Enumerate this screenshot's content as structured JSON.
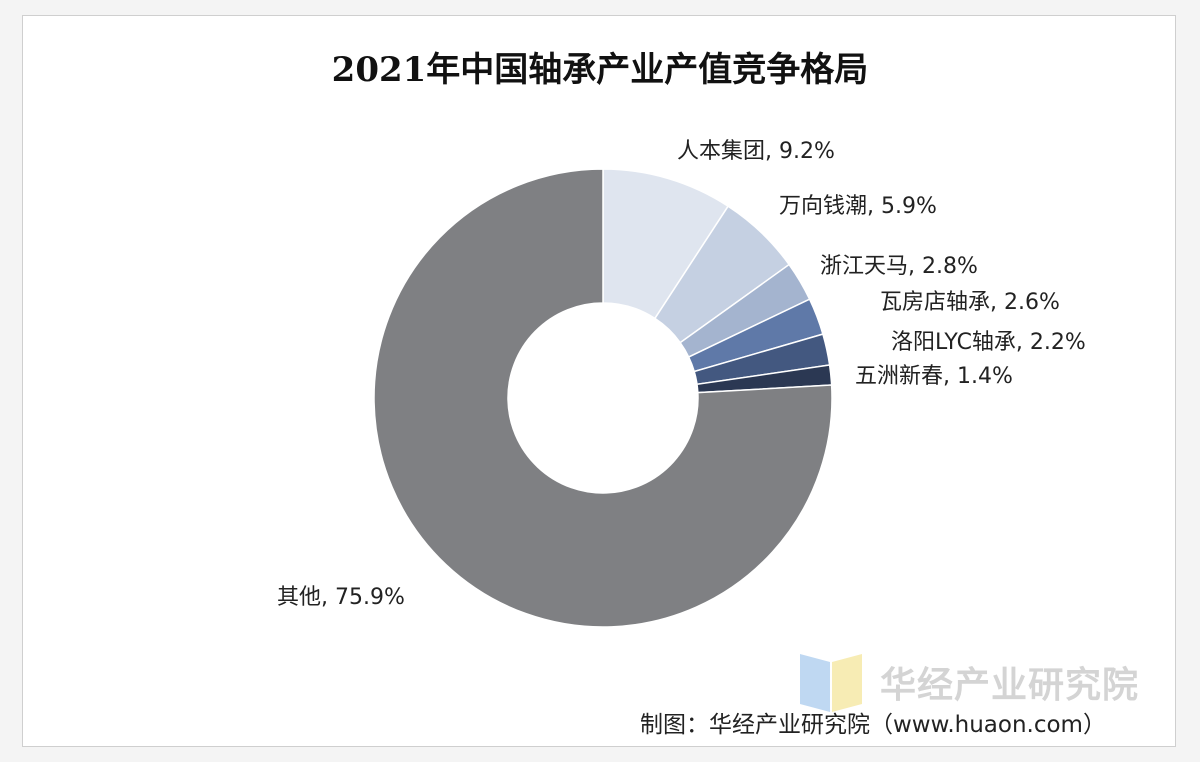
{
  "chart_data": {
    "type": "pie",
    "donut": true,
    "title": "2021年中国轴承产业产值竞争格局",
    "slices": [
      {
        "name": "人本集团",
        "value": 9.2,
        "label": "人本集团, 9.2%",
        "color": "#dfe5ef"
      },
      {
        "name": "万向钱潮",
        "value": 5.9,
        "label": "万向钱潮, 5.9%",
        "color": "#c5d0e2"
      },
      {
        "name": "浙江天马",
        "value": 2.8,
        "label": "浙江天马, 2.8%",
        "color": "#a4b4cf"
      },
      {
        "name": "瓦房店轴承",
        "value": 2.6,
        "label": "瓦房店轴承, 2.6%",
        "color": "#5f79a8"
      },
      {
        "name": "洛阳LYC轴承",
        "value": 2.2,
        "label": "洛阳LYC轴承, 2.2%",
        "color": "#435880"
      },
      {
        "name": "五洲新春",
        "value": 1.4,
        "label": "五洲新春, 1.4%",
        "color": "#2b3853"
      },
      {
        "name": "其他",
        "value": 75.9,
        "label": "其他, 75.9%",
        "color": "#7f8083"
      }
    ],
    "legend": "none"
  },
  "watermark": {
    "text": "华经产业研究院"
  },
  "source": "制图：华经产业研究院（www.huaon.com）"
}
